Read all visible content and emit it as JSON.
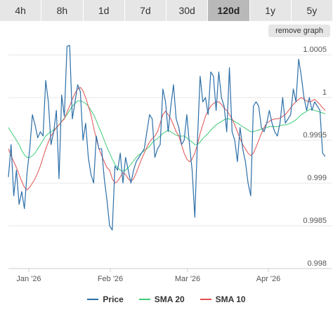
{
  "tabs": [
    {
      "label": "4h",
      "active": false
    },
    {
      "label": "8h",
      "active": false
    },
    {
      "label": "1d",
      "active": false
    },
    {
      "label": "7d",
      "active": false
    },
    {
      "label": "30d",
      "active": false
    },
    {
      "label": "120d",
      "active": true
    },
    {
      "label": "1y",
      "active": false
    },
    {
      "label": "5y",
      "active": false
    }
  ],
  "remove_graph_label": "remove graph",
  "colors": {
    "price": "#2c6fa8",
    "sma20": "#3dcc78",
    "sma10": "#e05050",
    "grid": "#e6e6e6"
  },
  "chart_data": {
    "type": "line",
    "x_ticks": [
      "Jan '26",
      "Feb '26",
      "Mar '26",
      "Apr '26"
    ],
    "y_ticks": [
      "1.0005",
      "1",
      "0.9995",
      "0.999",
      "0.9985",
      "0.998"
    ],
    "ylim": [
      0.998,
      1.0006
    ],
    "grid": true,
    "legend_position": "bottom-center",
    "series": [
      {
        "name": "Price",
        "values": [
          0.99907,
          0.99945,
          0.99885,
          0.99915,
          0.99875,
          0.9989,
          0.9987,
          0.99912,
          0.9994,
          0.9998,
          0.99968,
          0.99953,
          0.9996,
          0.99955,
          1.0002,
          0.99995,
          0.99945,
          0.9996,
          0.99985,
          0.99905,
          1.00003,
          0.99978,
          1.0006,
          1.00061,
          0.99975,
          0.99995,
          1.00015,
          1.00007,
          0.9995,
          0.9997,
          0.9993,
          0.9991,
          0.999,
          0.99955,
          0.9994,
          0.9994,
          0.99905,
          0.9988,
          0.9985,
          0.99845,
          0.9992,
          0.99915,
          0.99935,
          0.999,
          0.9993,
          0.99915,
          0.999,
          0.99915,
          0.99925,
          0.9993,
          0.99935,
          0.9994,
          0.9996,
          0.9998,
          0.99975,
          0.9993,
          0.9994,
          0.99945,
          1.0001,
          0.99995,
          0.9996,
          0.9999,
          1.00015,
          0.99975,
          0.99965,
          0.99945,
          0.9995,
          0.9998,
          0.99945,
          0.99915,
          0.9986,
          0.9995,
          1.00025,
          0.99995,
          1.0,
          0.9998,
          1.0003,
          1.00025,
          0.99985,
          1.0003,
          1.0,
          0.9999,
          0.9996,
          1.00035,
          0.9996,
          0.9995,
          0.99925,
          0.99965,
          0.9994,
          0.99925,
          0.999,
          0.99885,
          0.9999,
          0.99995,
          0.9999,
          0.99965,
          0.9996,
          0.9997,
          0.99985,
          0.9997,
          0.9996,
          0.99955,
          0.9997,
          1.0,
          0.9997,
          0.99975,
          0.9998,
          1.0001,
          0.99995,
          1.00045,
          1.00025,
          1.0,
          0.99985,
          1.0,
          0.99985,
          0.99995,
          0.9999,
          0.99985,
          0.99935,
          0.99931
        ]
      },
      {
        "name": "SMA 20",
        "values": [
          0.99965,
          0.9996,
          0.99955,
          0.9995,
          0.99945,
          0.99938,
          0.99933,
          0.9993,
          0.9993,
          0.99932,
          0.99935,
          0.9994,
          0.99945,
          0.9995,
          0.99955,
          0.99958,
          0.9996,
          0.99962,
          0.99965,
          0.99968,
          0.99972,
          0.99976,
          0.9998,
          0.99985,
          0.9999,
          0.99993,
          0.99996,
          0.99996,
          0.99995,
          0.99993,
          0.9999,
          0.99985,
          0.9998,
          0.99973,
          0.99965,
          0.99958,
          0.9995,
          0.99942,
          0.99935,
          0.99928,
          0.99922,
          0.99918,
          0.99915,
          0.99914,
          0.99915,
          0.99918,
          0.99922,
          0.99926,
          0.9993,
          0.99933,
          0.99935,
          0.99938,
          0.9994,
          0.99943,
          0.99947,
          0.9995,
          0.99952,
          0.99955,
          0.99958,
          0.9996,
          0.99962,
          0.9996,
          0.99958,
          0.99956,
          0.99955,
          0.99955,
          0.99955,
          0.99953,
          0.9995,
          0.99948,
          0.99945,
          0.99945,
          0.99948,
          0.99952,
          0.99955,
          0.99958,
          0.99962,
          0.99965,
          0.99968,
          0.9997,
          0.99972,
          0.99974,
          0.99975,
          0.99975,
          0.99974,
          0.99972,
          0.9997,
          0.99968,
          0.99966,
          0.99964,
          0.99962,
          0.9996,
          0.9996,
          0.99961,
          0.99962,
          0.99963,
          0.99964,
          0.99965,
          0.99966,
          0.99966,
          0.99966,
          0.99966,
          0.99967,
          0.99968,
          0.99968,
          0.99969,
          0.9997,
          0.99972,
          0.99974,
          0.99977,
          0.9998,
          0.99982,
          0.99984,
          0.99986,
          0.99986,
          0.99985,
          0.99984,
          0.99983,
          0.99982,
          0.99981
        ]
      },
      {
        "name": "SMA 10",
        "values": [
          0.9994,
          0.99932,
          0.99925,
          0.99918,
          0.9991,
          0.99902,
          0.99895,
          0.99892,
          0.99895,
          0.999,
          0.99905,
          0.99912,
          0.9992,
          0.9993,
          0.9994,
          0.99948,
          0.99955,
          0.9996,
          0.99965,
          0.99968,
          0.99972,
          0.99975,
          0.99983,
          0.9999,
          0.99998,
          1.00005,
          1.0001,
          1.00012,
          1.00008,
          1.0,
          0.9999,
          0.9998,
          0.99965,
          0.99952,
          0.9994,
          0.99932,
          0.99925,
          0.99918,
          0.99915,
          0.99905,
          0.999,
          0.99902,
          0.99907,
          0.99912,
          0.9991,
          0.99905,
          0.99902,
          0.99905,
          0.99912,
          0.9992,
          0.99928,
          0.99935,
          0.99942,
          0.99948,
          0.99952,
          0.99955,
          0.9996,
          0.9997,
          0.9998,
          0.99984,
          0.9998,
          0.99975,
          0.99968,
          0.9996,
          0.99955,
          0.99945,
          0.99935,
          0.99928,
          0.99925,
          0.99928,
          0.99935,
          0.99945,
          0.99958,
          0.99968,
          0.99978,
          0.99985,
          0.9999,
          0.99993,
          0.99995,
          0.99995,
          0.99992,
          0.99988,
          0.99985,
          0.9998,
          0.99975,
          0.99968,
          0.9996,
          0.99952,
          0.99945,
          0.9994,
          0.99935,
          0.99932,
          0.99935,
          0.99942,
          0.9995,
          0.99958,
          0.99965,
          0.9997,
          0.99972,
          0.99974,
          0.99975,
          0.99975,
          0.99976,
          0.99978,
          0.9998,
          0.99984,
          0.99988,
          0.99992,
          0.99995,
          0.99998,
          1.0,
          0.99998,
          0.99996,
          0.99995,
          0.99996,
          0.99998,
          0.99995,
          0.99992,
          0.99988,
          0.99985
        ]
      }
    ]
  }
}
